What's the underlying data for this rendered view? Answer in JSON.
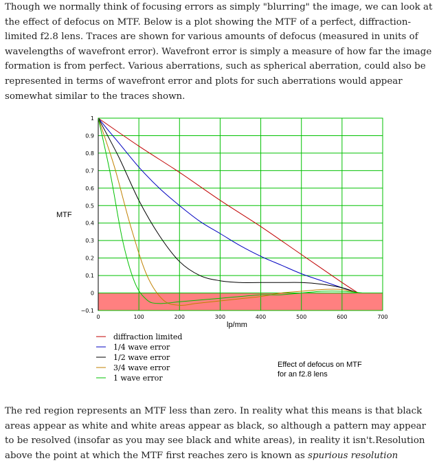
{
  "intro_text": "Though we normally think of focusing errors as simply \"blurring\" the image, we can look at the effect of defocus on MTF. Below is a plot showing the MTF of a perfect, diffraction-limited f2.8 lens. Traces are shown for various amounts of defocus (measured in units of wavelengths of wavefront error). Wavefront error is simply a measure of how far the image formation is from perfect. Various aberrations, such as spherical aberration, could also be represented in terms of wavefront error and plots for such aberrations would appear somewhat similar to the traces shown.",
  "outro_text": "The red region represents an MTF less than zero. In reality what this means is that black areas appear as white and white areas appear as black, so although a pattern may appear to be resolved (insofar as you may see black and white areas), in reality it isn't.Resolution above the point at which the MTF first reaches zero is known as ",
  "outro_emphasis": "spurious resolution",
  "colors": {
    "grid": "#00c000",
    "negative_region": "#ff8080",
    "red": "#c00000",
    "blue": "#0000c0",
    "black": "#000000",
    "orange": "#c08000",
    "green": "#00c000"
  },
  "chart_data": {
    "type": "line",
    "title": "",
    "xlabel": "lp/mm",
    "ylabel": "MTF",
    "xlim": [
      0,
      700
    ],
    "ylim": [
      -0.1,
      1
    ],
    "x_ticks": [
      "0",
      "100",
      "200",
      "300",
      "400",
      "500",
      "600",
      "700"
    ],
    "y_ticks": [
      "1",
      "0.9",
      "0.8",
      "0.7",
      "0.6",
      "0.5",
      "0.4",
      "0.3",
      "0.2",
      "0.1",
      "0",
      "−0.1"
    ],
    "grid": true,
    "negative_region": true,
    "annotation": [
      "Effect of defocus on MTF",
      "for an f2.8 lens"
    ],
    "series": [
      {
        "name": "diffraction limited",
        "color": "red",
        "x": [
          0,
          100,
          200,
          300,
          400,
          500,
          600,
          640
        ],
        "y": [
          1.0,
          0.84,
          0.69,
          0.53,
          0.38,
          0.22,
          0.06,
          0.0
        ]
      },
      {
        "name": "1/4 wave error",
        "color": "blue",
        "x": [
          0,
          50,
          100,
          150,
          200,
          250,
          300,
          350,
          400,
          450,
          500,
          550,
          600,
          640
        ],
        "y": [
          1.0,
          0.86,
          0.72,
          0.6,
          0.5,
          0.41,
          0.34,
          0.27,
          0.21,
          0.16,
          0.11,
          0.07,
          0.03,
          0.0
        ]
      },
      {
        "name": "1/2 wave error",
        "color": "black",
        "x": [
          0,
          50,
          100,
          150,
          200,
          250,
          300,
          350,
          400,
          450,
          500,
          550,
          600,
          640
        ],
        "y": [
          1.0,
          0.78,
          0.53,
          0.33,
          0.18,
          0.1,
          0.07,
          0.06,
          0.06,
          0.06,
          0.06,
          0.05,
          0.03,
          0.0
        ]
      },
      {
        "name": "3/4 wave error",
        "color": "orange",
        "x": [
          0,
          40,
          80,
          120,
          160,
          200,
          240,
          280,
          320,
          360,
          400,
          450,
          500,
          550,
          600,
          640
        ],
        "y": [
          1.0,
          0.72,
          0.38,
          0.1,
          -0.04,
          -0.07,
          -0.06,
          -0.05,
          -0.04,
          -0.03,
          -0.02,
          0.0,
          0.01,
          0.02,
          0.02,
          0.0
        ]
      },
      {
        "name": "1 wave error",
        "color": "green",
        "x": [
          0,
          30,
          60,
          90,
          120,
          150,
          200,
          250,
          300,
          350,
          400,
          450,
          500,
          550,
          600,
          650
        ],
        "y": [
          1.0,
          0.68,
          0.3,
          0.06,
          -0.04,
          -0.06,
          -0.05,
          -0.04,
          -0.03,
          -0.02,
          -0.01,
          -0.01,
          0.0,
          0.01,
          0.01,
          0.0
        ]
      }
    ]
  }
}
